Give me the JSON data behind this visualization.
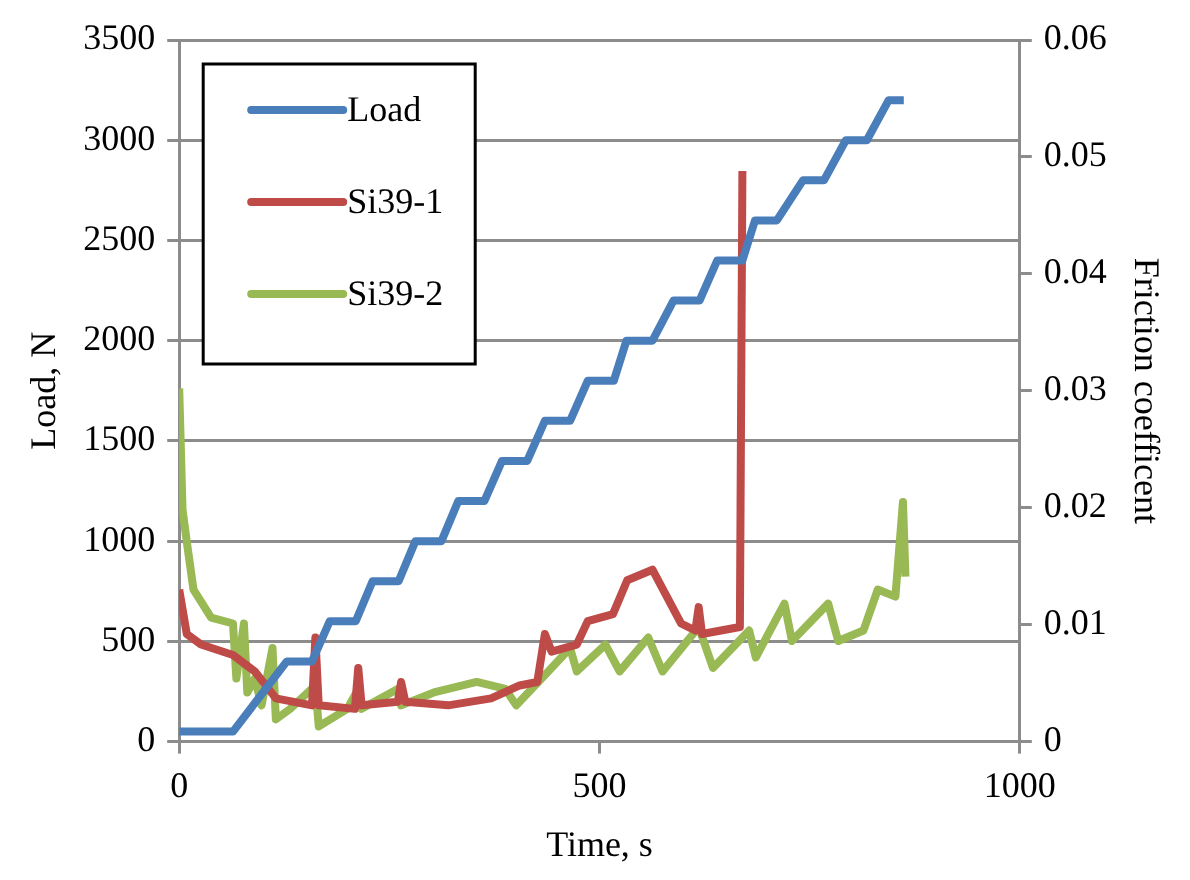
{
  "chart_data": {
    "type": "line",
    "xlabel": "Time, s",
    "ylabel": "Load, N",
    "y2label": "Friction coefficent",
    "xlim": [
      0,
      1000
    ],
    "xticks": [
      0,
      500,
      1000
    ],
    "ylim": [
      0,
      3500
    ],
    "yticks": [
      0,
      500,
      1000,
      1500,
      2000,
      2500,
      3000,
      3500
    ],
    "y2lim": [
      0,
      0.06
    ],
    "y2ticks": [
      0,
      0.01,
      0.02,
      0.03,
      0.04,
      0.05,
      0.06
    ],
    "grid": "y",
    "legend": "top left",
    "marker": "none",
    "line_style": "solid",
    "series": [
      {
        "name": "Load",
        "color": "#4a7ebb",
        "x": [
          0,
          64,
          128,
          158,
          179,
          210,
          230,
          261,
          281,
          312,
          332,
          363,
          384,
          414,
          435,
          465,
          486,
          517,
          532,
          563,
          588,
          619,
          640,
          670,
          685,
          711,
          742,
          767,
          793,
          818,
          844,
          862
        ],
        "values": [
          50,
          50,
          400,
          400,
          600,
          600,
          800,
          800,
          1000,
          1000,
          1200,
          1200,
          1400,
          1400,
          1600,
          1600,
          1800,
          1800,
          2000,
          2000,
          2200,
          2200,
          2400,
          2400,
          2600,
          2600,
          2800,
          2800,
          3000,
          3000,
          3200,
          3200
        ]
      },
      {
        "name": "Si39-1",
        "color": "#be4b48",
        "axis": "y2",
        "x": [
          0,
          9,
          26,
          64,
          90,
          115,
          158,
          162,
          166,
          209,
          213,
          217,
          260,
          264,
          269,
          320,
          371,
          405,
          426,
          435,
          443,
          473,
          486,
          516,
          533,
          563,
          597,
          614,
          618,
          622,
          667,
          670
        ],
        "values": [
          0.013,
          0.0092,
          0.0083,
          0.0074,
          0.006,
          0.0037,
          0.0031,
          0.0089,
          0.0031,
          0.0028,
          0.0063,
          0.0031,
          0.0034,
          0.0051,
          0.0034,
          0.0031,
          0.0037,
          0.0048,
          0.0051,
          0.0092,
          0.0077,
          0.0083,
          0.0103,
          0.0109,
          0.0138,
          0.0147,
          0.0101,
          0.0095,
          0.0115,
          0.0092,
          0.0098,
          0.0488
        ]
      },
      {
        "name": "Si39-2",
        "color": "#98b954",
        "axis": "y2",
        "x": [
          0,
          4,
          9,
          17,
          38,
          64,
          68,
          77,
          81,
          90,
          98,
          111,
          115,
          132,
          162,
          166,
          200,
          213,
          217,
          260,
          264,
          303,
          354,
          388,
          401,
          439,
          465,
          473,
          507,
          524,
          558,
          575,
          618,
          635,
          678,
          686,
          720,
          729,
          772,
          784,
          814,
          831,
          852,
          861,
          864
        ],
        "values": [
          0.0302,
          0.0198,
          0.0171,
          0.013,
          0.0106,
          0.0101,
          0.0054,
          0.0101,
          0.0042,
          0.0054,
          0.0031,
          0.008,
          0.0019,
          0.0028,
          0.0048,
          0.0013,
          0.0028,
          0.0045,
          0.0028,
          0.0045,
          0.0031,
          0.0042,
          0.0051,
          0.0045,
          0.0031,
          0.006,
          0.008,
          0.006,
          0.0083,
          0.006,
          0.0089,
          0.006,
          0.0098,
          0.0063,
          0.0095,
          0.0072,
          0.0118,
          0.0086,
          0.0118,
          0.0086,
          0.0095,
          0.013,
          0.0124,
          0.0205,
          0.0141
        ]
      }
    ]
  }
}
